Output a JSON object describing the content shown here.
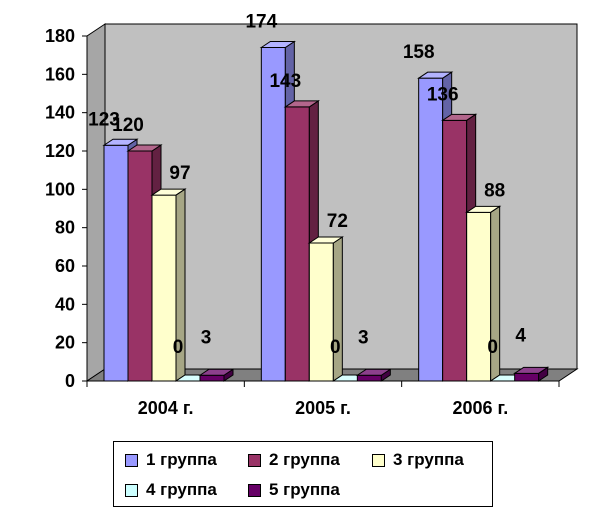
{
  "chart_data": {
    "type": "bar",
    "categories": [
      "2004 г.",
      "2005 г.",
      "2006 г."
    ],
    "series": [
      {
        "name": "1 группа",
        "values": [
          123,
          174,
          158
        ],
        "color": "#9999FF"
      },
      {
        "name": "2 группа",
        "values": [
          120,
          143,
          136
        ],
        "color": "#993366"
      },
      {
        "name": "3 группа",
        "values": [
          97,
          72,
          88
        ],
        "color": "#FFFFCC"
      },
      {
        "name": "4 группа",
        "values": [
          0,
          0,
          0
        ],
        "color": "#CCFFFF"
      },
      {
        "name": "5 группа",
        "values": [
          3,
          3,
          4
        ],
        "color": "#660066"
      }
    ],
    "ylim": [
      0,
      180
    ],
    "yticks": [
      0,
      20,
      40,
      60,
      80,
      100,
      120,
      140,
      160,
      180
    ],
    "title": "",
    "xlabel": "",
    "ylabel": "",
    "legend_position": "bottom",
    "grid": false,
    "three_d": true,
    "wall_color": "#C0C0C0"
  }
}
